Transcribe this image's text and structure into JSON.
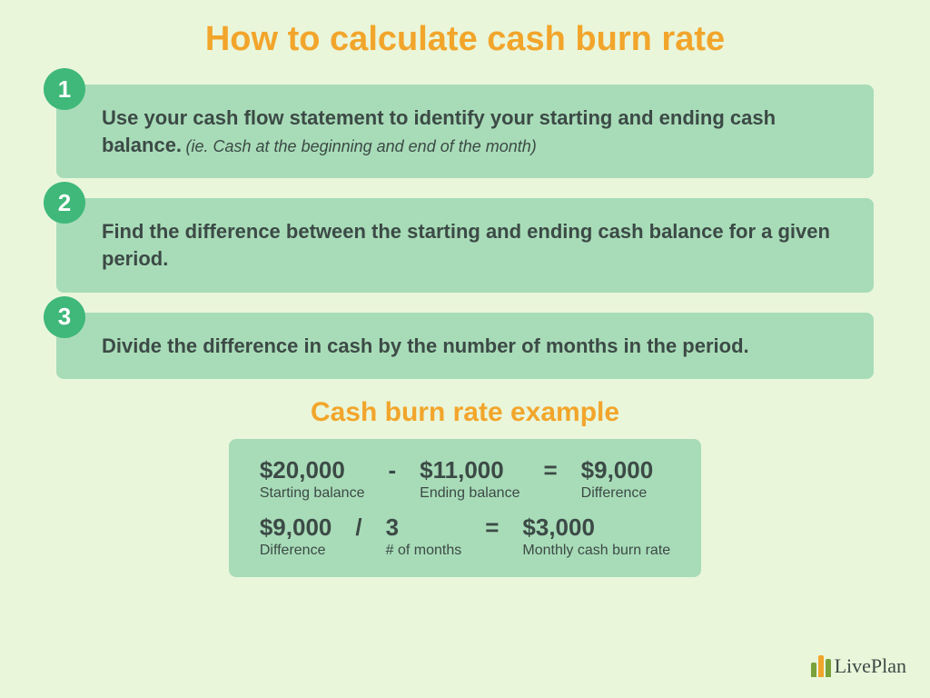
{
  "colors": {
    "page_bg": "#e9f6da",
    "title": "#f2a52b",
    "badge_bg": "#3fb879",
    "badge_text": "#ffffff",
    "box_bg": "#a8dcb8",
    "body_text": "#3c4a46",
    "subtitle": "#f2a52b",
    "note_text": "#3c4a46",
    "logo_text": "#3c4a46",
    "logo_bar1": "#7aa23a",
    "logo_bar2": "#f2a52b",
    "logo_bar3": "#7aa23a"
  },
  "typography": {
    "title_size": 38,
    "step_size": 22,
    "note_size": 18,
    "subtitle_size": 30,
    "term_val_size": 26,
    "term_lbl_size": 16,
    "op_size": 26
  },
  "layout": {
    "box_radius": 8,
    "badge_size": 46
  },
  "title": "How to calculate cash burn rate",
  "steps": [
    {
      "n": "1",
      "text": "Use your cash flow statement to identify your starting and ending cash balance.",
      "note": "(ie. Cash at the beginning and end of the month)"
    },
    {
      "n": "2",
      "text": "Find the difference between the starting and ending cash balance for a given period.",
      "note": ""
    },
    {
      "n": "3",
      "text": "Divide the difference in cash by the number of months in the period.",
      "note": ""
    }
  ],
  "subtitle": "Cash burn rate example",
  "example": {
    "row1": {
      "a": {
        "val": "$20,000",
        "lbl": "Starting balance"
      },
      "op1": "-",
      "b": {
        "val": "$11,000",
        "lbl": "Ending balance"
      },
      "op2": "=",
      "c": {
        "val": "$9,000",
        "lbl": "Difference"
      }
    },
    "row2": {
      "a": {
        "val": "$9,000",
        "lbl": "Difference"
      },
      "op1": "/",
      "b": {
        "val": "3",
        "lbl": "# of months"
      },
      "op2": "=",
      "c": {
        "val": "$3,000",
        "lbl": "Monthly cash burn rate"
      }
    }
  },
  "logo": {
    "text": "LivePlan"
  }
}
